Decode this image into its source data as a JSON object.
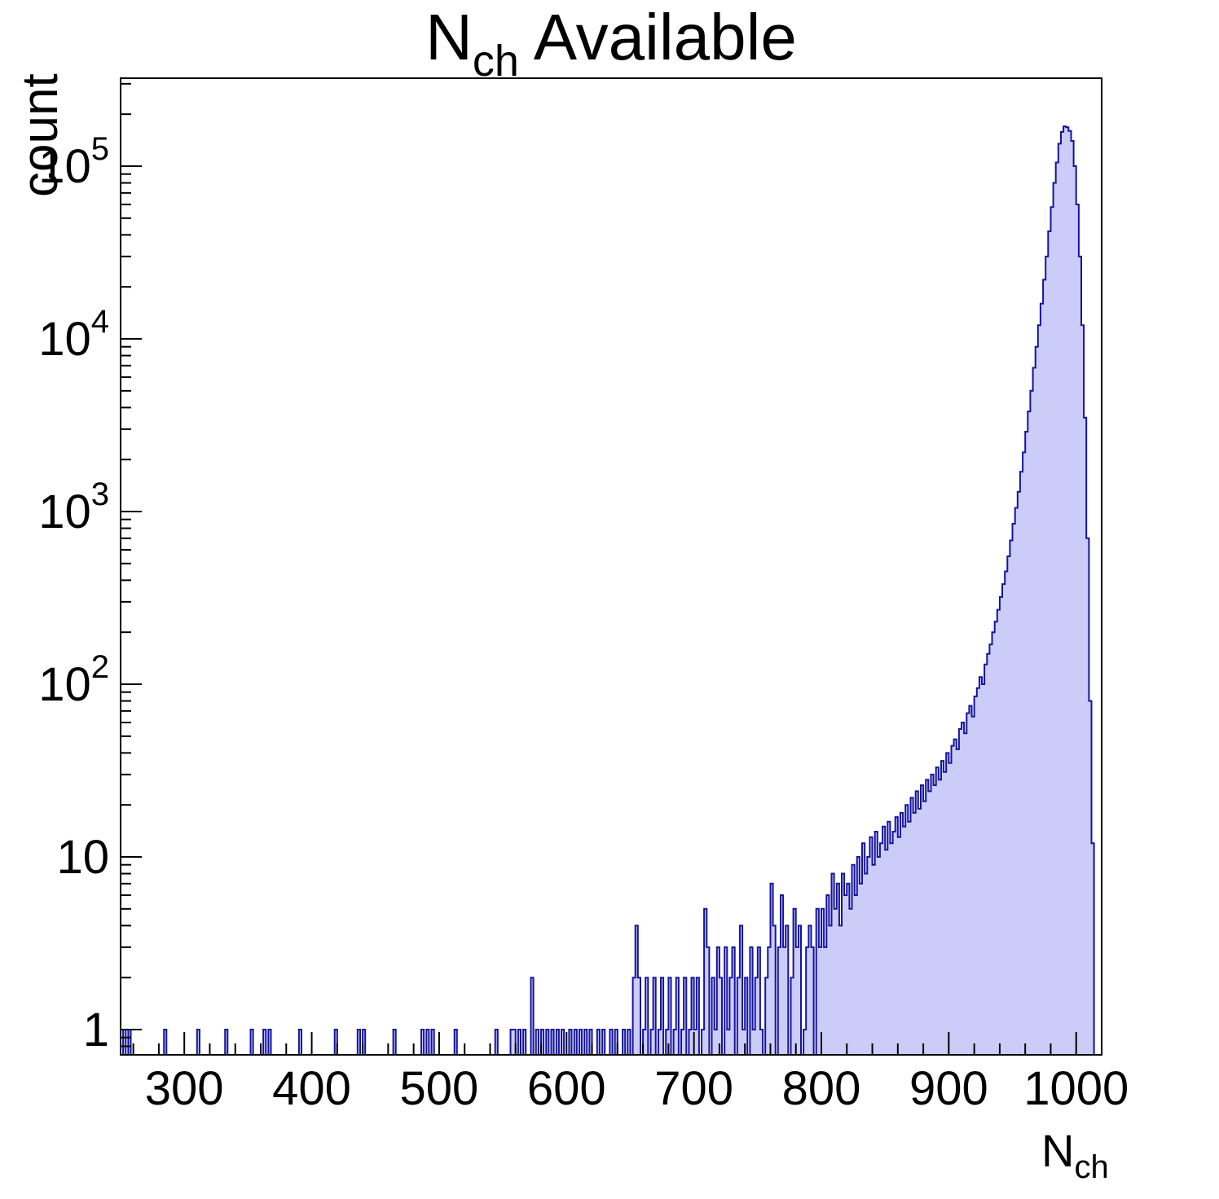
{
  "title": {
    "pre": "N",
    "sub": "ch",
    "post": " Available"
  },
  "axes": {
    "yaxis_label": "count",
    "xaxis_label": {
      "pre": "N",
      "sub": "ch"
    },
    "x_ticks": [
      300,
      400,
      500,
      600,
      700,
      800,
      900,
      1000
    ],
    "y_ticks": [
      {
        "value": 1,
        "base": "1",
        "exp": ""
      },
      {
        "value": 10,
        "base": "10",
        "exp": ""
      },
      {
        "value": 100,
        "base": "10",
        "exp": "2"
      },
      {
        "value": 1000,
        "base": "10",
        "exp": "3"
      },
      {
        "value": 10000,
        "base": "10",
        "exp": "4"
      },
      {
        "value": 100000,
        "base": "10",
        "exp": "5"
      }
    ]
  },
  "chart_data": {
    "type": "histogram",
    "title": "N_{ch} Available",
    "xlabel": "N_{ch}",
    "ylabel": "count",
    "x_range": [
      250,
      1020
    ],
    "y_range": [
      0.7,
      320000
    ],
    "y_scale": "log",
    "bin_width": 2,
    "fill_color": "#ccccf8",
    "line_color": "#1414a0",
    "frame_color": "#000000",
    "peak": {
      "x": 990,
      "count": 170000
    },
    "bins": [
      [
        252,
        1
      ],
      [
        256,
        1
      ],
      [
        284,
        1
      ],
      [
        310,
        1
      ],
      [
        332,
        1
      ],
      [
        352,
        1
      ],
      [
        362,
        1
      ],
      [
        366,
        1
      ],
      [
        390,
        1
      ],
      [
        418,
        1
      ],
      [
        436,
        1
      ],
      [
        440,
        1
      ],
      [
        464,
        1
      ],
      [
        486,
        1
      ],
      [
        490,
        1
      ],
      [
        494,
        1
      ],
      [
        512,
        1
      ],
      [
        544,
        1
      ],
      [
        556,
        1
      ],
      [
        558,
        1
      ],
      [
        562,
        1
      ],
      [
        566,
        1
      ],
      [
        572,
        2
      ],
      [
        576,
        1
      ],
      [
        580,
        1
      ],
      [
        584,
        1
      ],
      [
        588,
        1
      ],
      [
        592,
        1
      ],
      [
        596,
        1
      ],
      [
        602,
        1
      ],
      [
        606,
        1
      ],
      [
        610,
        1
      ],
      [
        614,
        1
      ],
      [
        618,
        1
      ],
      [
        624,
        1
      ],
      [
        628,
        1
      ],
      [
        634,
        1
      ],
      [
        638,
        1
      ],
      [
        644,
        1
      ],
      [
        648,
        1
      ],
      [
        652,
        2
      ],
      [
        654,
        4
      ],
      [
        656,
        2
      ],
      [
        660,
        1
      ],
      [
        662,
        2
      ],
      [
        666,
        1
      ],
      [
        668,
        2
      ],
      [
        672,
        1
      ],
      [
        674,
        2
      ],
      [
        678,
        1
      ],
      [
        680,
        2
      ],
      [
        684,
        1
      ],
      [
        686,
        2
      ],
      [
        690,
        1
      ],
      [
        692,
        2
      ],
      [
        696,
        1
      ],
      [
        698,
        2
      ],
      [
        700,
        1
      ],
      [
        702,
        2
      ],
      [
        706,
        1
      ],
      [
        708,
        5
      ],
      [
        710,
        3
      ],
      [
        714,
        2
      ],
      [
        716,
        1
      ],
      [
        718,
        3
      ],
      [
        720,
        2
      ],
      [
        724,
        3
      ],
      [
        726,
        1
      ],
      [
        728,
        2
      ],
      [
        730,
        3
      ],
      [
        734,
        2
      ],
      [
        736,
        4
      ],
      [
        738,
        1
      ],
      [
        740,
        2
      ],
      [
        744,
        3
      ],
      [
        746,
        1
      ],
      [
        748,
        2
      ],
      [
        750,
        3
      ],
      [
        752,
        1
      ],
      [
        756,
        2
      ],
      [
        758,
        3
      ],
      [
        760,
        7
      ],
      [
        762,
        4
      ],
      [
        766,
        3
      ],
      [
        768,
        6
      ],
      [
        770,
        3
      ],
      [
        772,
        4
      ],
      [
        776,
        2
      ],
      [
        778,
        5
      ],
      [
        780,
        3
      ],
      [
        782,
        4
      ],
      [
        786,
        1
      ],
      [
        788,
        3
      ],
      [
        790,
        4
      ],
      [
        792,
        3
      ],
      [
        796,
        5
      ],
      [
        798,
        3
      ],
      [
        800,
        5
      ],
      [
        802,
        3
      ],
      [
        804,
        6
      ],
      [
        806,
        4
      ],
      [
        808,
        8
      ],
      [
        810,
        5
      ],
      [
        812,
        7
      ],
      [
        814,
        4
      ],
      [
        816,
        8
      ],
      [
        818,
        6
      ],
      [
        820,
        7
      ],
      [
        822,
        5
      ],
      [
        824,
        9
      ],
      [
        826,
        6
      ],
      [
        828,
        10
      ],
      [
        830,
        7
      ],
      [
        832,
        12
      ],
      [
        834,
        8
      ],
      [
        836,
        10
      ],
      [
        838,
        13
      ],
      [
        840,
        9
      ],
      [
        842,
        14
      ],
      [
        844,
        10
      ],
      [
        846,
        12
      ],
      [
        848,
        15
      ],
      [
        850,
        11
      ],
      [
        852,
        16
      ],
      [
        854,
        12
      ],
      [
        856,
        14
      ],
      [
        858,
        17
      ],
      [
        860,
        13
      ],
      [
        862,
        18
      ],
      [
        864,
        15
      ],
      [
        866,
        20
      ],
      [
        868,
        16
      ],
      [
        870,
        22
      ],
      [
        872,
        18
      ],
      [
        874,
        24
      ],
      [
        876,
        19
      ],
      [
        878,
        26
      ],
      [
        880,
        21
      ],
      [
        882,
        28
      ],
      [
        884,
        24
      ],
      [
        886,
        30
      ],
      [
        888,
        26
      ],
      [
        890,
        33
      ],
      [
        892,
        28
      ],
      [
        894,
        36
      ],
      [
        896,
        31
      ],
      [
        898,
        40
      ],
      [
        900,
        35
      ],
      [
        902,
        44
      ],
      [
        904,
        48
      ],
      [
        906,
        42
      ],
      [
        908,
        55
      ],
      [
        910,
        60
      ],
      [
        912,
        52
      ],
      [
        914,
        68
      ],
      [
        916,
        75
      ],
      [
        918,
        65
      ],
      [
        920,
        85
      ],
      [
        922,
        95
      ],
      [
        924,
        110
      ],
      [
        926,
        100
      ],
      [
        928,
        130
      ],
      [
        930,
        150
      ],
      [
        932,
        170
      ],
      [
        934,
        200
      ],
      [
        936,
        230
      ],
      [
        938,
        270
      ],
      [
        940,
        320
      ],
      [
        942,
        380
      ],
      [
        944,
        450
      ],
      [
        946,
        550
      ],
      [
        948,
        680
      ],
      [
        950,
        850
      ],
      [
        952,
        1050
      ],
      [
        954,
        1300
      ],
      [
        956,
        1700
      ],
      [
        958,
        2200
      ],
      [
        960,
        2900
      ],
      [
        962,
        3800
      ],
      [
        964,
        5000
      ],
      [
        966,
        6800
      ],
      [
        968,
        9000
      ],
      [
        970,
        12000
      ],
      [
        972,
        16000
      ],
      [
        974,
        22000
      ],
      [
        976,
        30000
      ],
      [
        978,
        42000
      ],
      [
        980,
        58000
      ],
      [
        982,
        80000
      ],
      [
        984,
        105000
      ],
      [
        986,
        135000
      ],
      [
        988,
        158000
      ],
      [
        990,
        170000
      ],
      [
        992,
        168000
      ],
      [
        994,
        160000
      ],
      [
        996,
        140000
      ],
      [
        998,
        100000
      ],
      [
        1000,
        60000
      ],
      [
        1002,
        30000
      ],
      [
        1004,
        12000
      ],
      [
        1006,
        3500
      ],
      [
        1008,
        700
      ],
      [
        1010,
        80
      ],
      [
        1012,
        12
      ]
    ]
  }
}
